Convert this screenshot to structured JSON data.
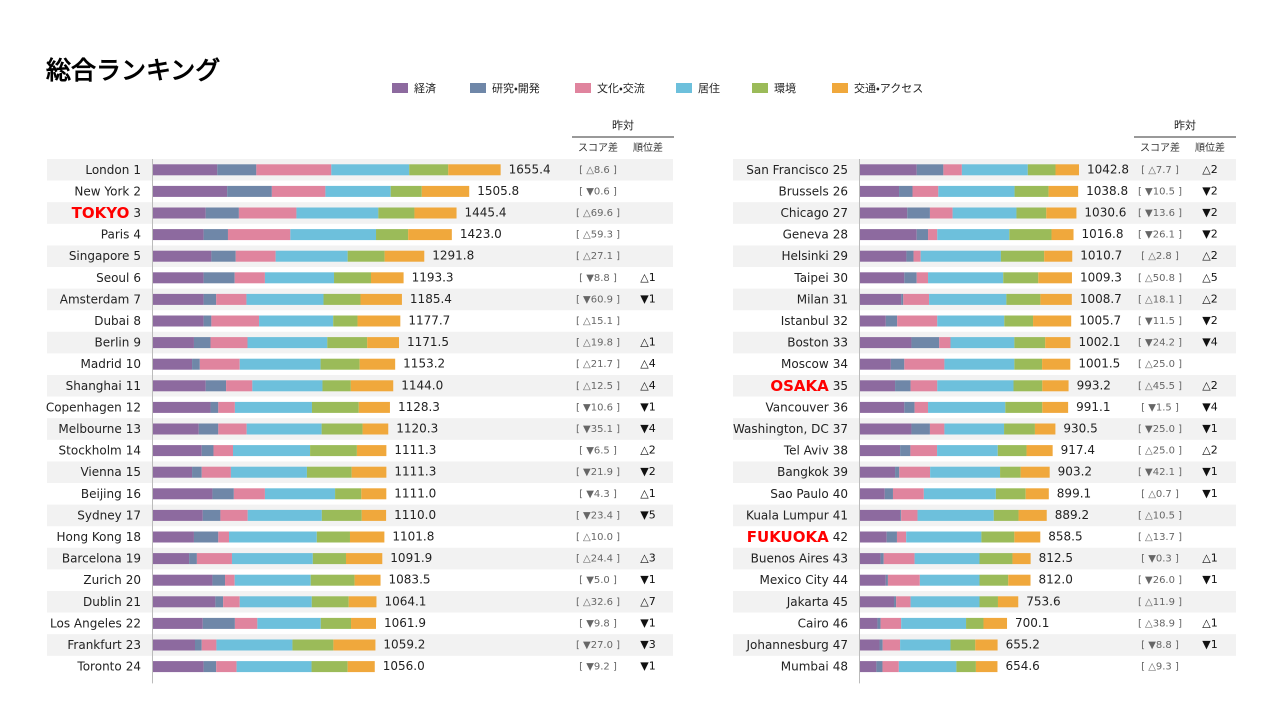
{
  "chart_data": {
    "type": "stacked-bar",
    "title": "総合ランキング",
    "column_group": "昨対",
    "score_change_header": "スコア差",
    "rank_change_header": "順位差",
    "xlim": [
      0,
      1700
    ],
    "categories": [
      "London",
      "New York",
      "TOKYO",
      "Paris",
      "Singapore",
      "Seoul",
      "Amsterdam",
      "Dubai",
      "Berlin",
      "Madrid",
      "Shanghai",
      "Copenhagen",
      "Melbourne",
      "Stockholm",
      "Vienna",
      "Beijing",
      "Sydney",
      "Hong Kong",
      "Barcelona",
      "Zurich",
      "Dublin",
      "Los Angeles",
      "Frankfurt",
      "Toronto",
      "San Francisco",
      "Brussels",
      "Chicago",
      "Geneva",
      "Helsinki",
      "Taipei",
      "Milan",
      "Istanbul",
      "Boston",
      "Moscow",
      "OSAKA",
      "Vancouver",
      "Washington, DC",
      "Tel Aviv",
      "Bangkok",
      "Sao Paulo",
      "Kuala Lumpur",
      "FUKUOKA",
      "Buenos Aires",
      "Mexico City",
      "Jakarta",
      "Cairo",
      "Johannesburg",
      "Mumbai"
    ],
    "ranks": [
      1,
      2,
      3,
      4,
      5,
      6,
      7,
      8,
      9,
      10,
      11,
      12,
      13,
      14,
      15,
      16,
      17,
      18,
      19,
      20,
      21,
      22,
      23,
      24,
      25,
      26,
      27,
      28,
      29,
      30,
      31,
      32,
      33,
      34,
      35,
      36,
      37,
      38,
      39,
      40,
      41,
      42,
      43,
      44,
      45,
      46,
      47,
      48
    ],
    "series": [
      {
        "name": "経済",
        "color": "#8d6a9f",
        "values": [
          306,
          353,
          251,
          241,
          278,
          241,
          241,
          241,
          195,
          186,
          251,
          274,
          218,
          232,
          186,
          283,
          237,
          195,
          172,
          283,
          297,
          237,
          200,
          241,
          270,
          186,
          225,
          270,
          221,
          211,
          196,
          123,
          245,
          147,
          167,
          211,
          245,
          191,
          167,
          118,
          191,
          127,
          98,
          123,
          162,
          83,
          93,
          78
        ]
      },
      {
        "name": "研究・開発",
        "color": "#6f87a8",
        "values": [
          186,
          213,
          158,
          116,
          116,
          148,
          60,
          37,
          79,
          37,
          97,
          37,
          93,
          56,
          46,
          102,
          84,
          116,
          37,
          60,
          37,
          153,
          32,
          60,
          127,
          64,
          108,
          54,
          34,
          59,
          10,
          54,
          132,
          64,
          74,
          49,
          88,
          49,
          20,
          39,
          5,
          49,
          15,
          10,
          10,
          15,
          15,
          29
        ]
      },
      {
        "name": "文化・交流",
        "color": "#e0849e",
        "values": [
          357,
          255,
          274,
          297,
          190,
          144,
          144,
          227,
          176,
          190,
          125,
          79,
          135,
          93,
          139,
          148,
          130,
          51,
          167,
          46,
          79,
          107,
          70,
          97,
          88,
          123,
          108,
          44,
          34,
          54,
          123,
          191,
          54,
          191,
          127,
          64,
          69,
          127,
          147,
          147,
          78,
          44,
          147,
          152,
          69,
          98,
          83,
          78
        ]
      },
      {
        "name": "居住",
        "color": "#6dc0dc",
        "values": [
          371,
          311,
          390,
          408,
          343,
          329,
          367,
          353,
          380,
          385,
          334,
          367,
          357,
          367,
          362,
          334,
          353,
          418,
          385,
          362,
          343,
          302,
          362,
          357,
          314,
          363,
          304,
          343,
          382,
          358,
          368,
          319,
          304,
          333,
          363,
          368,
          284,
          289,
          333,
          343,
          363,
          358,
          309,
          284,
          328,
          309,
          240,
          274
        ]
      },
      {
        "name": "環境",
        "color": "#9bbb59",
        "values": [
          186,
          148,
          172,
          153,
          176,
          176,
          176,
          116,
          190,
          186,
          135,
          223,
          195,
          223,
          213,
          125,
          190,
          158,
          158,
          209,
          176,
          144,
          195,
          172,
          132,
          162,
          142,
          201,
          206,
          167,
          162,
          137,
          147,
          132,
          137,
          176,
          147,
          137,
          98,
          142,
          118,
          157,
          157,
          137,
          88,
          83,
          118,
          93
        ]
      },
      {
        "name": "交通・アクセス",
        "color": "#f0a83c",
        "values": [
          249.4,
          225.8,
          200.4,
          208,
          188.8,
          155.3,
          197.4,
          203.7,
          151.5,
          169.2,
          202,
          148.3,
          122.3,
          140.3,
          165.3,
          119,
          116,
          163.8,
          172.9,
          123.5,
          132.1,
          118.9,
          200.2,
          129,
          111.8,
          140.8,
          143.6,
          104.8,
          133.7,
          160.3,
          149.7,
          181.7,
          120.1,
          134.5,
          125.2,
          123.1,
          97.5,
          124.4,
          138.2,
          110.1,
          134.2,
          123.5,
          86.5,
          106,
          96.6,
          112.1,
          106.2,
          102.6
        ]
      }
    ],
    "totals": [
      1655.4,
      1505.8,
      1445.4,
      1423.0,
      1291.8,
      1193.3,
      1185.4,
      1177.7,
      1171.5,
      1153.2,
      1144.0,
      1128.3,
      1120.3,
      1111.3,
      1111.3,
      1111.0,
      1110.0,
      1101.8,
      1091.9,
      1083.5,
      1064.1,
      1061.9,
      1059.2,
      1056.0,
      1042.8,
      1038.8,
      1030.6,
      1016.8,
      1010.7,
      1009.3,
      1008.7,
      1005.7,
      1002.1,
      1001.5,
      993.2,
      991.1,
      930.5,
      917.4,
      903.2,
      899.1,
      889.2,
      858.5,
      812.5,
      812.0,
      753.6,
      700.1,
      655.2,
      654.6
    ],
    "total_labels": [
      "1655.4",
      "1505.8",
      "1445.4",
      "1423.0",
      "1291.8",
      "1193.3",
      "1185.4",
      "1177.7",
      "1171.5",
      "1153.2",
      "1144.0",
      "1128.3",
      "1120.3",
      "1111.3",
      "1111.3",
      "1111.0",
      "1110.0",
      "1101.8",
      "1091.9",
      "1083.5",
      "1064.1",
      "1061.9",
      "1059.2",
      "1056.0",
      "1042.8",
      "1038.8",
      "1030.6",
      "1016.8",
      "1010.7",
      "1009.3",
      "1008.7",
      "1005.7",
      "1002.1",
      "1001.5",
      "993.2",
      "991.1",
      "930.5",
      "917.4",
      "903.2",
      "899.1",
      "889.2",
      "858.5",
      "812.5",
      "812.0",
      "753.6",
      "700.1",
      "655.2",
      "654.6"
    ],
    "score_change": [
      "[ △8.6 ]",
      "[ ▼0.6 ]",
      "[ △69.6 ]",
      "[ △59.3 ]",
      "[ △27.1 ]",
      "[ ▼8.8 ]",
      "[ ▼60.9 ]",
      "[ △15.1 ]",
      "[ △19.8 ]",
      "[ △21.7 ]",
      "[ △12.5 ]",
      "[ ▼10.6 ]",
      "[ ▼35.1 ]",
      "[ ▼6.5 ]",
      "[ ▼21.9 ]",
      "[ ▼4.3 ]",
      "[ ▼23.4 ]",
      "[ △10.0 ]",
      "[ △24.4 ]",
      "[ ▼5.0 ]",
      "[ △32.6 ]",
      "[ ▼9.8 ]",
      "[ ▼27.0 ]",
      "[ ▼9.2 ]",
      "[ △7.7 ]",
      "[ ▼10.5 ]",
      "[ ▼13.6 ]",
      "[ ▼26.1 ]",
      "[ △2.8 ]",
      "[ △50.8 ]",
      "[ △18.1 ]",
      "[ ▼11.5 ]",
      "[ ▼24.2 ]",
      "[ △25.0 ]",
      "[ △45.5 ]",
      "[ ▼1.5 ]",
      "[ ▼25.0 ]",
      "[ △25.0 ]",
      "[ ▼42.1 ]",
      "[ △0.7 ]",
      "[ △10.5 ]",
      "[ △13.7 ]",
      "[ ▼0.3 ]",
      "[ ▼26.0 ]",
      "[ △11.9 ]",
      "[ △38.9 ]",
      "[ ▼8.8 ]",
      "[ △9.3 ]"
    ],
    "rank_change": [
      null,
      null,
      null,
      null,
      null,
      "△1",
      "▼1",
      null,
      "△1",
      "△4",
      "△4",
      "▼1",
      "▼4",
      "△2",
      "▼2",
      "△1",
      "▼5",
      null,
      "△3",
      "▼1",
      "△7",
      "▼1",
      "▼3",
      "▼1",
      "△2",
      "▼2",
      "▼2",
      "▼2",
      "△2",
      "△5",
      "△2",
      "▼2",
      "▼4",
      null,
      "△2",
      "▼4",
      "▼1",
      "△2",
      "▼1",
      "▼1",
      null,
      null,
      "△1",
      "▼1",
      null,
      "△1",
      "▼1",
      null
    ]
  }
}
